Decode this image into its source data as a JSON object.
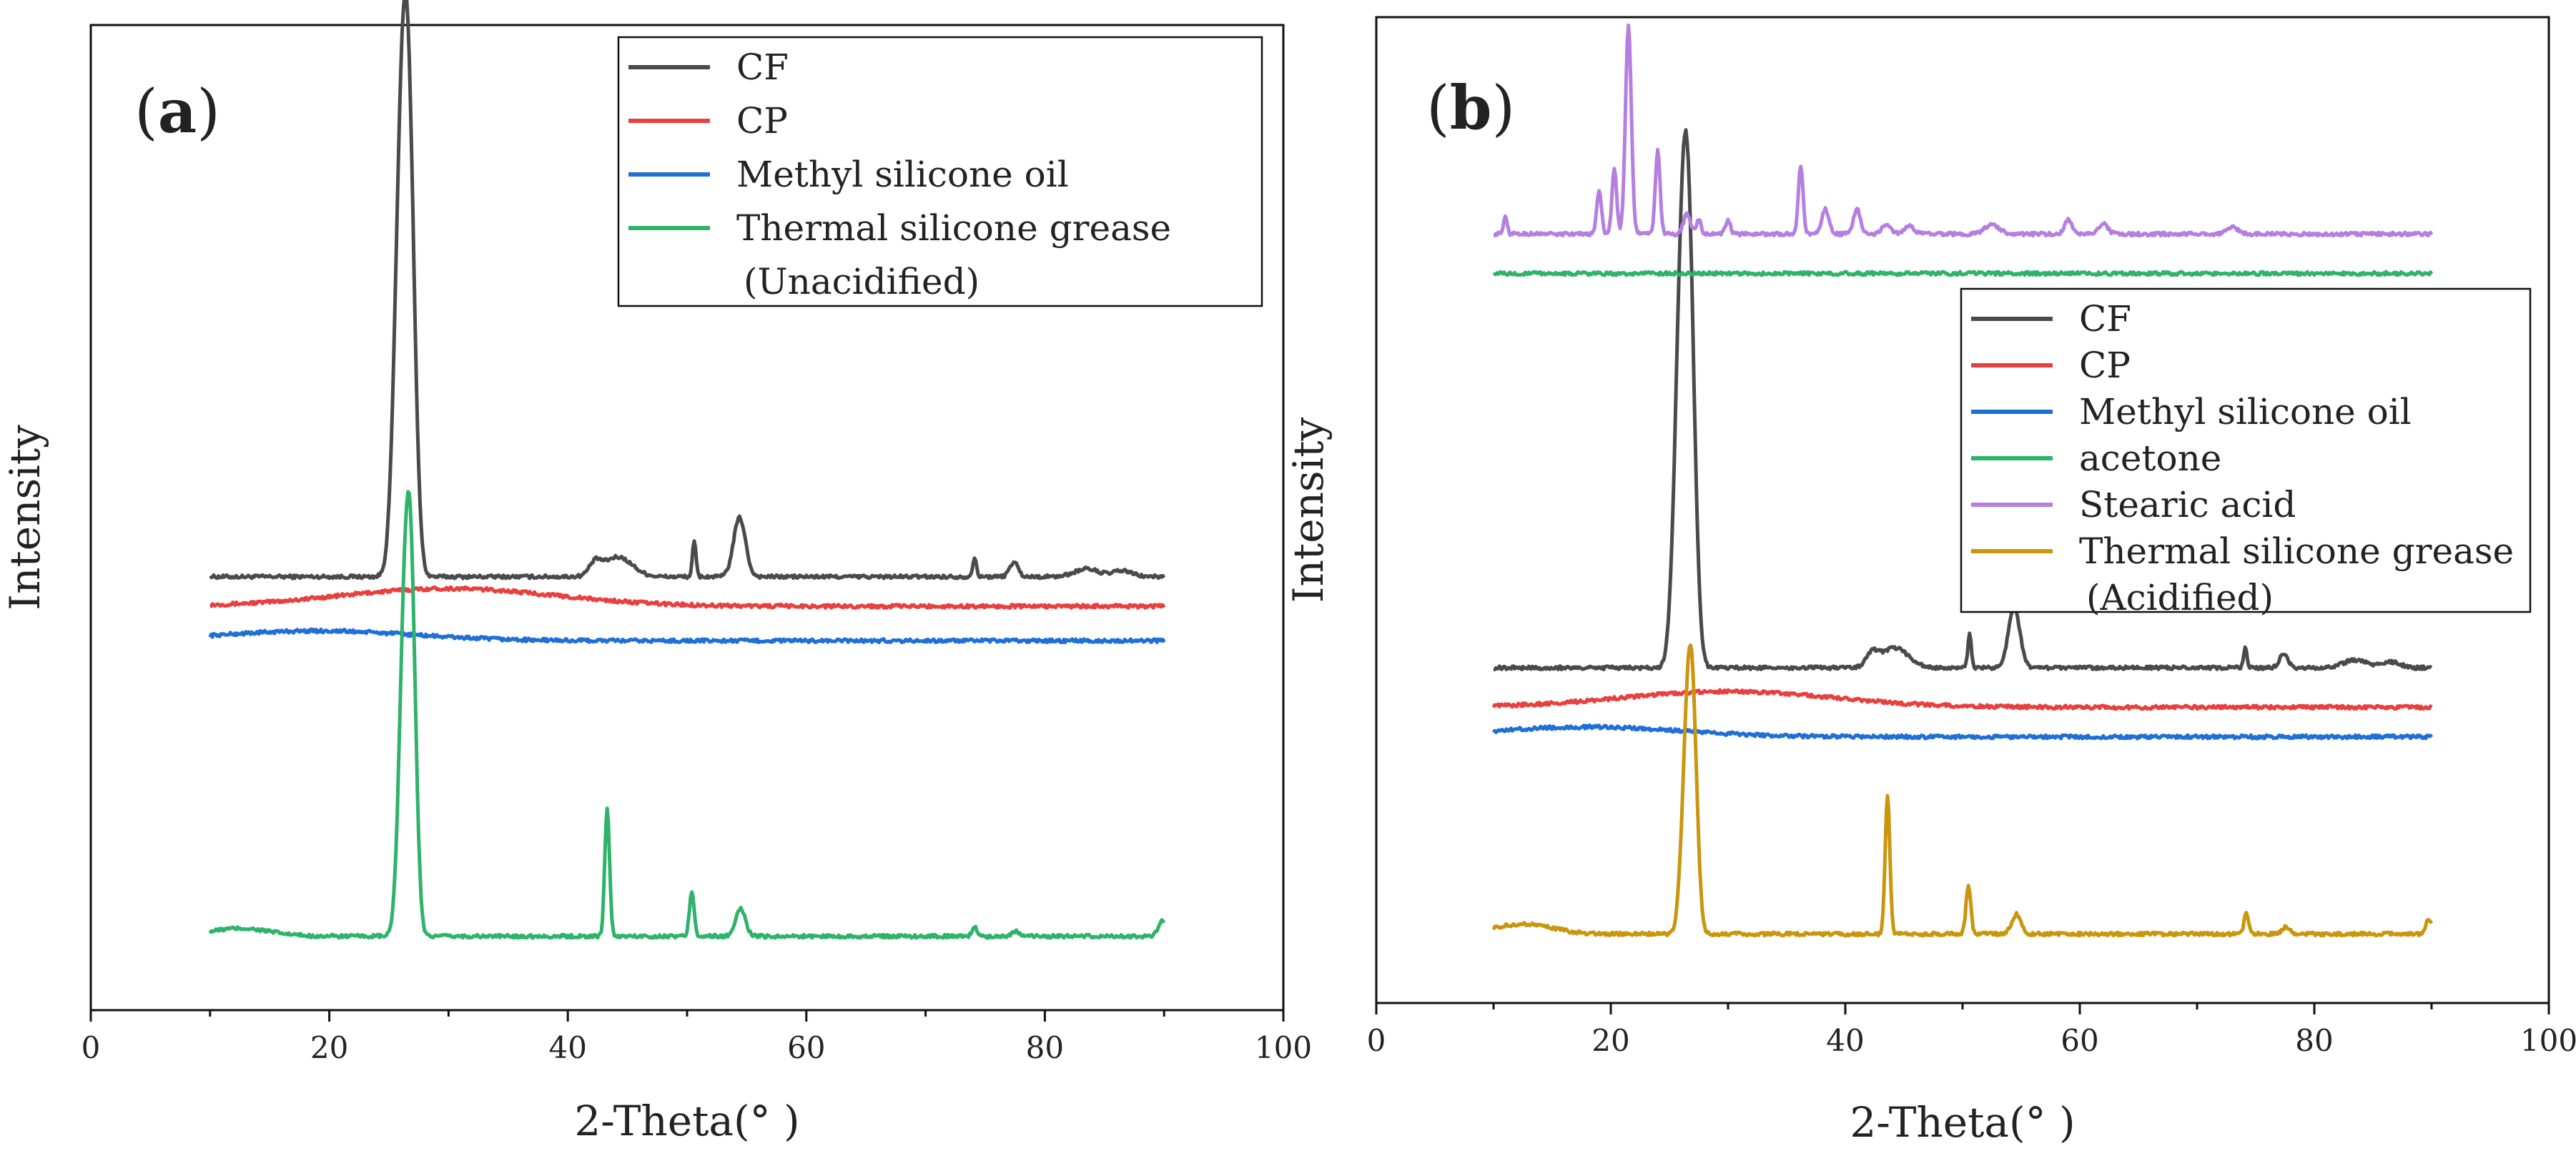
{
  "colors": {
    "CF": "#4a4a4a",
    "CP": "#e8403e",
    "Methyl silicone oil": "#1f6fd6",
    "Thermal silicone grease": "#2fb36a",
    "acetone": "#2fb36a",
    "Stearic acid": "#b57fe0",
    "Thermal silicone grease (Acidified)": "#c9960e"
  },
  "chart_data": [
    {
      "type": "line",
      "panel": "a",
      "panel_label_prefix": "(",
      "panel_label_letter": "a",
      "panel_label_suffix": ")",
      "xlabel": "2-Theta(° )",
      "ylabel": "Intensity",
      "xlim": [
        0,
        100
      ],
      "xticks": [
        0,
        20,
        40,
        60,
        80,
        100
      ],
      "ylim": [
        0,
        100
      ],
      "legend_position": "top-right",
      "series": [
        {
          "name": "CF",
          "legend_lines": [
            "CF"
          ],
          "color_key": "CF",
          "baseline": 44,
          "peaks": [
            [
              26.0,
              38,
              0.55
            ],
            [
              26.7,
              36,
              0.5
            ],
            [
              42.3,
              1.2,
              0.5
            ],
            [
              44.2,
              2.0,
              1.2
            ],
            [
              50.6,
              3.5,
              0.15
            ],
            [
              54.4,
              6.0,
              0.5
            ],
            [
              74.1,
              2.0,
              0.15
            ],
            [
              77.4,
              1.5,
              0.35
            ],
            [
              83.5,
              0.8,
              1.0
            ],
            [
              86.5,
              0.6,
              0.8
            ]
          ]
        },
        {
          "name": "CP",
          "legend_lines": [
            "CP"
          ],
          "color_key": "CP",
          "baseline": 41,
          "peaks": [
            [
              30,
              1.8,
              9
            ]
          ]
        },
        {
          "name": "Methyl silicone oil",
          "legend_lines": [
            "Methyl silicone oil"
          ],
          "color_key": "Methyl silicone oil",
          "baseline": 37.5,
          "peaks": [
            [
              19,
              1.0,
              8
            ]
          ]
        },
        {
          "name": "Thermal silicone grease (Unacidified)",
          "legend_lines": [
            "Thermal silicone grease",
            "(Unacidified)"
          ],
          "color_key": "Thermal silicone grease",
          "baseline": 7.5,
          "peaks": [
            [
              12.5,
              0.8,
              2.5
            ],
            [
              26.3,
              30,
              0.45
            ],
            [
              26.9,
              28,
              0.4
            ],
            [
              43.3,
              13,
              0.2
            ],
            [
              50.4,
              4.5,
              0.2
            ],
            [
              54.5,
              2.8,
              0.4
            ],
            [
              74.1,
              1.0,
              0.2
            ],
            [
              77.5,
              0.5,
              0.3
            ],
            [
              89.8,
              1.5,
              0.3
            ]
          ]
        }
      ]
    },
    {
      "type": "line",
      "panel": "b",
      "panel_label_prefix": "(",
      "panel_label_letter": "b",
      "panel_label_suffix": ")",
      "xlabel": "2-Theta(° )",
      "ylabel": "Intensity",
      "xlim": [
        0,
        100
      ],
      "xticks": [
        0,
        20,
        40,
        60,
        80,
        100
      ],
      "ylim": [
        0,
        100
      ],
      "legend_position": "right",
      "series": [
        {
          "name": "CF",
          "legend_lines": [
            "CF"
          ],
          "color_key": "CF",
          "baseline": 34,
          "peaks": [
            [
              26.0,
              35,
              0.55
            ],
            [
              26.7,
              33,
              0.5
            ],
            [
              42.3,
              1.2,
              0.5
            ],
            [
              44.2,
              2.0,
              1.2
            ],
            [
              50.6,
              3.5,
              0.15
            ],
            [
              54.4,
              6.0,
              0.5
            ],
            [
              74.1,
              2.0,
              0.15
            ],
            [
              77.4,
              1.5,
              0.35
            ],
            [
              83.5,
              0.8,
              1.0
            ],
            [
              86.5,
              0.6,
              0.8
            ]
          ]
        },
        {
          "name": "CP",
          "legend_lines": [
            "CP"
          ],
          "color_key": "CP",
          "baseline": 30,
          "peaks": [
            [
              30,
              1.6,
              9
            ]
          ]
        },
        {
          "name": "Methyl silicone oil",
          "legend_lines": [
            "Methyl silicone oil"
          ],
          "color_key": "Methyl silicone oil",
          "baseline": 27,
          "peaks": [
            [
              18,
              1.0,
              8
            ]
          ]
        },
        {
          "name": "acetone",
          "legend_lines": [
            "acetone"
          ],
          "color_key": "acetone",
          "baseline": 74,
          "peaks": []
        },
        {
          "name": "Stearic acid",
          "legend_lines": [
            "Stearic acid"
          ],
          "color_key": "Stearic acid",
          "baseline": 78,
          "peaks": [
            [
              11,
              1.8,
              0.15
            ],
            [
              19.0,
              4.5,
              0.2
            ],
            [
              20.3,
              6.5,
              0.2
            ],
            [
              21.5,
              21,
              0.25
            ],
            [
              24.0,
              8.5,
              0.2
            ],
            [
              26.5,
              2.0,
              0.3
            ],
            [
              27.5,
              1.5,
              0.2
            ],
            [
              30.0,
              1.5,
              0.2
            ],
            [
              36.2,
              7.0,
              0.2
            ],
            [
              38.3,
              2.5,
              0.3
            ],
            [
              41.0,
              2.5,
              0.3
            ],
            [
              43.5,
              1.0,
              0.4
            ],
            [
              45.5,
              0.8,
              0.4
            ],
            [
              52.5,
              1.0,
              0.6
            ],
            [
              59.0,
              1.5,
              0.3
            ],
            [
              62.0,
              1.0,
              0.4
            ],
            [
              73.0,
              0.7,
              0.5
            ]
          ]
        },
        {
          "name": "Thermal silicone grease (Acidified)",
          "legend_lines": [
            "Thermal silicone grease",
            "(Acidified)"
          ],
          "color_key": "Thermal silicone grease (Acidified)",
          "baseline": 7,
          "peaks": [
            [
              12.5,
              1.0,
              2.5
            ],
            [
              26.5,
              18,
              0.45
            ],
            [
              27.0,
              17,
              0.4
            ],
            [
              43.6,
              14,
              0.2
            ],
            [
              50.5,
              5.0,
              0.2
            ],
            [
              54.6,
              2.0,
              0.4
            ],
            [
              74.2,
              2.0,
              0.2
            ],
            [
              77.6,
              0.7,
              0.3
            ],
            [
              89.8,
              1.5,
              0.3
            ]
          ]
        }
      ]
    }
  ]
}
